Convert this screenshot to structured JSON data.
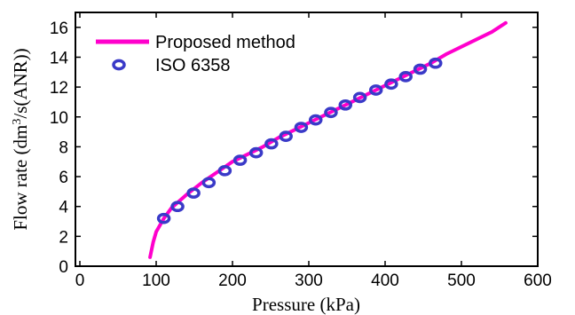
{
  "chart_data": {
    "type": "line",
    "title": "",
    "xlabel": "Pressure (kPa)",
    "ylabel_parts": [
      "Flow rate (dm",
      "3",
      "/s(ANR))"
    ],
    "xlim": [
      0,
      600
    ],
    "ylim": [
      0,
      17
    ],
    "x_ticks": [
      0,
      100,
      200,
      300,
      400,
      500,
      600
    ],
    "y_ticks": [
      0,
      2,
      4,
      6,
      8,
      10,
      12,
      14,
      16
    ],
    "grid": false,
    "legend_position": "top-left",
    "series": [
      {
        "name": "Proposed method",
        "style": "line",
        "color": "#ff00cc",
        "x": [
          92,
          96,
          100,
          110,
          120,
          140,
          160,
          180,
          200,
          220,
          240,
          260,
          280,
          300,
          320,
          340,
          360,
          380,
          400,
          420,
          440,
          460,
          480,
          500,
          520,
          540,
          558
        ],
        "y": [
          0.6,
          1.6,
          2.3,
          3.2,
          3.9,
          4.8,
          5.6,
          6.3,
          7.0,
          7.5,
          8.0,
          8.6,
          9.1,
          9.6,
          10.1,
          10.6,
          11.1,
          11.6,
          12.1,
          12.6,
          13.1,
          13.6,
          14.2,
          14.7,
          15.2,
          15.7,
          16.3
        ]
      },
      {
        "name": "ISO 6358",
        "style": "marker",
        "color": "#3a3ac8",
        "x": [
          110,
          128,
          149,
          169,
          190,
          210,
          231,
          251,
          270,
          290,
          309,
          329,
          348,
          367,
          388,
          408,
          427,
          446,
          466
        ],
        "y": [
          3.2,
          4.0,
          4.9,
          5.6,
          6.4,
          7.1,
          7.6,
          8.2,
          8.7,
          9.3,
          9.8,
          10.3,
          10.8,
          11.3,
          11.8,
          12.2,
          12.7,
          13.2,
          13.6
        ]
      }
    ]
  }
}
